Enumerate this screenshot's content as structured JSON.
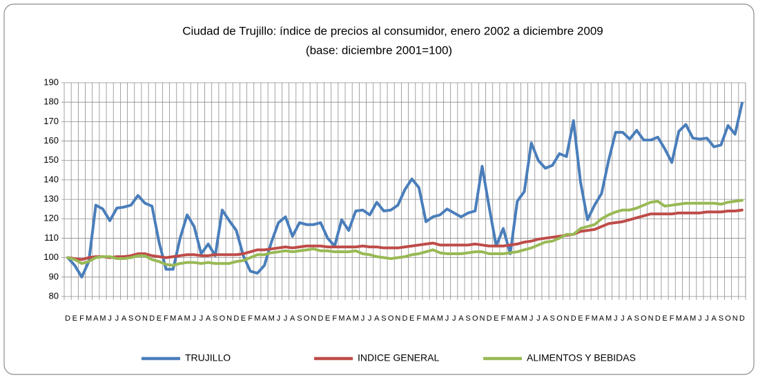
{
  "chart_data": {
    "type": "line",
    "title": "Ciudad de Trujillo: índice de precios al consumidor,  enero 2002 a diciembre 2009",
    "subtitle": "(base: diciembre 2001=100)",
    "categories": [
      "D",
      "E",
      "F",
      "M",
      "A",
      "M",
      "J",
      "J",
      "A",
      "S",
      "O",
      "N",
      "D",
      "E",
      "F",
      "M",
      "A",
      "M",
      "J",
      "J",
      "A",
      "S",
      "O",
      "N",
      "D",
      "E",
      "F",
      "M",
      "A",
      "M",
      "J",
      "J",
      "A",
      "S",
      "O",
      "N",
      "D",
      "E",
      "F",
      "M",
      "A",
      "M",
      "J",
      "J",
      "A",
      "S",
      "O",
      "N",
      "D",
      "E",
      "F",
      "M",
      "A",
      "M",
      "J",
      "J",
      "A",
      "S",
      "O",
      "N",
      "D",
      "E",
      "F",
      "M",
      "A",
      "M",
      "J",
      "J",
      "A",
      "S",
      "O",
      "N",
      "D",
      "E",
      "F",
      "M",
      "A",
      "M",
      "J",
      "J",
      "A",
      "S",
      "O",
      "N",
      "D",
      "E",
      "F",
      "M",
      "A",
      "M",
      "J",
      "J",
      "A",
      "S",
      "O",
      "N",
      "D"
    ],
    "series": [
      {
        "name": "TRUJILLO",
        "color": "#4a7ebb",
        "values": [
          100,
          96,
          90,
          98,
          127,
          125,
          119,
          125.5,
          126,
          127,
          132,
          128,
          126.5,
          108,
          94,
          94,
          110,
          122,
          116,
          102,
          107,
          101,
          124.5,
          119,
          114,
          101,
          93,
          92,
          96,
          108,
          118,
          121,
          111,
          118,
          117,
          117,
          118,
          110,
          106,
          119.5,
          114,
          124,
          124.5,
          122,
          128.5,
          124,
          124.5,
          127,
          135,
          140.5,
          136,
          118.5,
          121,
          122,
          125,
          123,
          121,
          123,
          124,
          147,
          126,
          106,
          115,
          102,
          129,
          134,
          159,
          150,
          146,
          147.5,
          153.5,
          152,
          170.5,
          139,
          119.5,
          127,
          133,
          150,
          164.5,
          164.5,
          161,
          165.5,
          160.5,
          160.5,
          162,
          156,
          149,
          165,
          168.5,
          161.5,
          161,
          161.5,
          157,
          158,
          168,
          163.5,
          179.5
        ]
      },
      {
        "name": "INDICE GENERAL",
        "color": "#be4b48",
        "values": [
          100,
          99.5,
          99,
          100,
          100.5,
          100.5,
          100,
          100.5,
          100.5,
          101,
          102,
          102,
          101,
          100.5,
          100,
          100.5,
          101,
          101.5,
          101.5,
          101,
          101,
          101.5,
          101.5,
          101.5,
          101.5,
          102,
          103,
          104,
          104,
          104.5,
          105,
          105.5,
          105,
          105.5,
          106,
          106,
          106,
          105.5,
          105.5,
          105.5,
          105.5,
          105.5,
          106,
          105.5,
          105.5,
          105,
          105,
          105,
          105.5,
          106,
          106.5,
          107,
          107.5,
          106.5,
          106.5,
          106.5,
          106.5,
          106.5,
          107,
          106.5,
          106,
          106,
          106,
          106.5,
          107,
          108,
          108.5,
          109.5,
          110,
          110.5,
          111,
          111.5,
          112,
          113.5,
          114,
          114.5,
          116,
          117.5,
          118,
          118.5,
          119.5,
          120.5,
          121.5,
          122.5,
          122.5,
          122.5,
          122.5,
          123,
          123,
          123,
          123,
          123.5,
          123.5,
          123.5,
          124,
          124,
          124.5
        ]
      },
      {
        "name": "ALIMENTOS Y BEBIDAS",
        "color": "#98b954",
        "values": [
          100,
          99,
          97,
          98,
          100,
          100.5,
          100.5,
          99.5,
          99.5,
          100,
          101,
          101,
          99,
          98,
          96.5,
          96,
          97,
          97.5,
          97.5,
          97,
          97.5,
          97,
          97,
          97,
          98,
          98.5,
          100,
          101.5,
          101.5,
          102.5,
          103,
          103.5,
          103,
          103.5,
          104,
          104.5,
          103.5,
          103.5,
          103,
          103,
          103,
          103.5,
          102,
          101.5,
          100.5,
          100,
          99.5,
          100,
          100.5,
          101.5,
          102,
          103,
          104,
          102.5,
          102,
          102,
          102,
          102.5,
          103,
          103,
          102,
          102,
          102,
          102.5,
          103,
          104,
          105,
          106.5,
          108,
          108.5,
          110,
          112,
          112,
          115,
          116,
          117,
          120,
          122,
          123.5,
          124.5,
          124.5,
          125.5,
          127,
          128.5,
          129,
          126.5,
          127,
          127.5,
          128,
          128,
          128,
          128,
          128,
          127.5,
          128.5,
          129,
          129.5
        ]
      }
    ],
    "ylim": [
      80,
      190
    ],
    "yticks": [
      80,
      90,
      100,
      110,
      120,
      130,
      140,
      150,
      160,
      170,
      180,
      190
    ],
    "grid": true,
    "legend": "bottom"
  }
}
